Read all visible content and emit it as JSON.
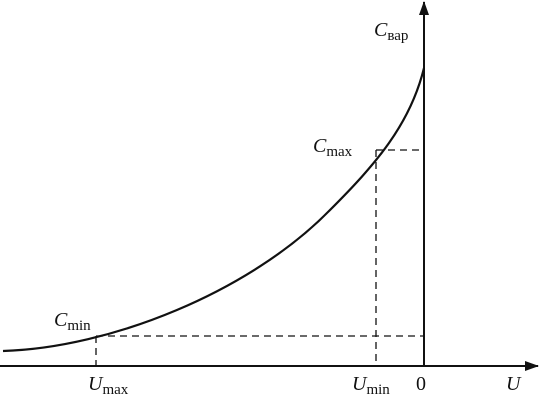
{
  "axes": {
    "y_label": {
      "main": "C",
      "sub": "вар"
    },
    "x_label": "U",
    "origin": "0"
  },
  "points": {
    "c_max": {
      "main": "C",
      "sub": "max"
    },
    "c_min": {
      "main": "C",
      "sub": "min"
    },
    "u_max": {
      "main": "U",
      "sub": "max"
    },
    "u_min": {
      "main": "U",
      "sub": "min"
    }
  }
}
